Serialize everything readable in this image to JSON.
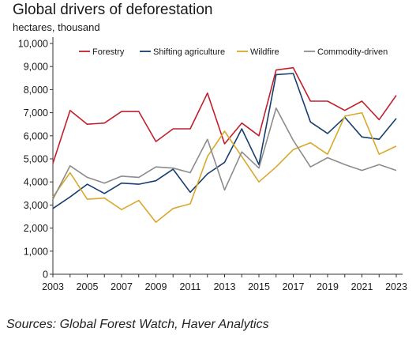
{
  "header": {
    "title": "Global drivers of deforestation",
    "subtitle": "hectares, thousand"
  },
  "footer": {
    "source": "Sources: Global Forest Watch, Haver Analytics"
  },
  "chart_data": {
    "type": "line",
    "title": "Global drivers of deforestation",
    "subtitle": "hectares, thousand",
    "x": [
      2003,
      2004,
      2005,
      2006,
      2007,
      2008,
      2009,
      2010,
      2011,
      2012,
      2013,
      2014,
      2015,
      2016,
      2017,
      2018,
      2019,
      2020,
      2021,
      2022,
      2023
    ],
    "x_tick_labels": [
      "2003",
      "2005",
      "2007",
      "2009",
      "2011",
      "2013",
      "2015",
      "2017",
      "2019",
      "2021",
      "2023"
    ],
    "ylim": [
      0,
      10000
    ],
    "y_tick_labels": [
      "0",
      "1,000",
      "2,000",
      "3,000",
      "4,000",
      "5,000",
      "6,000",
      "7,000",
      "8,000",
      "9,000",
      "10,000"
    ],
    "grid": false,
    "legend_position": "top",
    "series": [
      {
        "name": "Forestry",
        "color": "#c0202e",
        "values": [
          4800,
          7100,
          6500,
          6550,
          7050,
          7050,
          5750,
          6300,
          6300,
          7850,
          5650,
          6550,
          6000,
          8850,
          8950,
          7500,
          7500,
          7100,
          7500,
          6700,
          7750
        ]
      },
      {
        "name": "Shifting agriculture",
        "color": "#173e6e",
        "values": [
          2850,
          3350,
          3900,
          3500,
          3950,
          3900,
          4050,
          4550,
          3550,
          4350,
          4850,
          6300,
          4750,
          8650,
          8700,
          6600,
          6100,
          6800,
          5950,
          5850,
          6750
        ]
      },
      {
        "name": "Wildfire",
        "color": "#d9a82c",
        "values": [
          3350,
          4400,
          3250,
          3300,
          2800,
          3200,
          2250,
          2850,
          3050,
          5100,
          6200,
          5100,
          4000,
          4650,
          5400,
          5700,
          5200,
          6850,
          7000,
          5200,
          5550
        ]
      },
      {
        "name": "Commodity-driven",
        "color": "#8c8c8c",
        "values": [
          3250,
          4700,
          4200,
          3950,
          4250,
          4200,
          4650,
          4600,
          4400,
          5850,
          3650,
          5300,
          4600,
          7200,
          5800,
          4650,
          5050,
          4750,
          4500,
          4750,
          4500
        ]
      }
    ]
  }
}
